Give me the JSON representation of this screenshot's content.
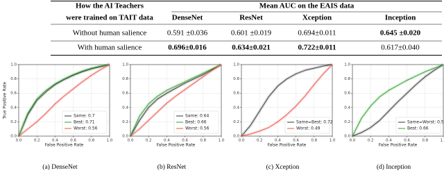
{
  "table": {
    "header": {
      "left": [
        "How the AI Teachers",
        "were trained on TAIT data"
      ],
      "group": "Mean AUC on the EAIS data",
      "columns": [
        "DenseNet",
        "ResNet",
        "Xception",
        "Inception"
      ]
    },
    "rows": [
      {
        "label": "Without human salience",
        "cells": [
          {
            "text": "0.591 ±0.036",
            "bold": false,
            "color": "#b04fe0"
          },
          {
            "text": "0.601 ±0.019",
            "bold": false,
            "color": "#b04fe0"
          },
          {
            "text": "0.694±0.011",
            "bold": false,
            "color": "#d98a00"
          },
          {
            "text": "0.645 ±0.020",
            "bold": true,
            "color": "#9b30d0"
          }
        ]
      },
      {
        "label": "With human salience",
        "cells": [
          {
            "text": "0.696±0.016",
            "bold": true,
            "color": "#9b30d0"
          },
          {
            "text": "0.634±0.021",
            "bold": true,
            "color": "#9b30d0"
          },
          {
            "text": "0.722±0.011",
            "bold": true,
            "color": "#d98a00"
          },
          {
            "text": "0.617±0.040",
            "bold": false,
            "color": "#b04fe0"
          }
        ]
      }
    ]
  },
  "chart_data": [
    {
      "type": "line",
      "caption": "(a) DenseNet",
      "xlabel": "False Positive Rate",
      "ylabel": "True Positive Rate",
      "xlim": [
        0,
        1
      ],
      "ylim": [
        0,
        1
      ],
      "grid": true,
      "legend": "lower right",
      "xticks": [
        {
          "value": 0,
          "label": "0.0"
        },
        0.2,
        0.4,
        0.6,
        0.8,
        {
          "value": 1,
          "label": "1.0"
        }
      ],
      "yticks": [
        {
          "value": 0,
          "label": "0.0"
        },
        0.2,
        0.4,
        0.6,
        0.8,
        {
          "value": 1,
          "label": "1.0"
        }
      ],
      "x": [
        0,
        0.1,
        0.2,
        0.3,
        0.4,
        0.5,
        0.6,
        0.7,
        0.8,
        0.9,
        1
      ],
      "series": [
        {
          "name": "Same: 0.7",
          "color": "#333333",
          "values": [
            0,
            0.3,
            0.5,
            0.62,
            0.72,
            0.79,
            0.85,
            0.9,
            0.94,
            0.97,
            1
          ]
        },
        {
          "name": "Best: 0.71",
          "color": "#2ca02c",
          "values": [
            0,
            0.32,
            0.52,
            0.64,
            0.73,
            0.8,
            0.86,
            0.91,
            0.95,
            0.98,
            1
          ]
        },
        {
          "name": "Worst: 0.56",
          "color": "#e8554e",
          "values": [
            0,
            0.1,
            0.2,
            0.32,
            0.45,
            0.56,
            0.66,
            0.76,
            0.85,
            0.93,
            1
          ]
        }
      ]
    },
    {
      "type": "line",
      "caption": "(b) ResNet",
      "xlabel": "False Positive Rate",
      "xlim": [
        0,
        1
      ],
      "ylim": [
        0,
        1
      ],
      "grid": true,
      "legend": "lower right",
      "xticks": [
        {
          "value": 0,
          "label": "0.0"
        },
        0.2,
        0.4,
        0.6,
        0.8,
        {
          "value": 1,
          "label": "1.0"
        }
      ],
      "yticks": [
        {
          "value": 0,
          "label": "0.0"
        },
        0.2,
        0.4,
        0.6,
        0.8,
        {
          "value": 1,
          "label": "1.0"
        }
      ],
      "x": [
        0,
        0.1,
        0.2,
        0.3,
        0.4,
        0.5,
        0.6,
        0.7,
        0.8,
        0.9,
        1
      ],
      "series": [
        {
          "name": "Same: 0.64",
          "color": "#333333",
          "values": [
            0,
            0.22,
            0.4,
            0.52,
            0.6,
            0.67,
            0.74,
            0.8,
            0.86,
            0.93,
            1
          ]
        },
        {
          "name": "Best: 0.66",
          "color": "#2ca02c",
          "values": [
            0,
            0.28,
            0.45,
            0.56,
            0.64,
            0.7,
            0.76,
            0.82,
            0.88,
            0.94,
            1
          ]
        },
        {
          "name": "Worst: 0.56",
          "color": "#e8554e",
          "values": [
            0,
            0.1,
            0.22,
            0.34,
            0.46,
            0.56,
            0.65,
            0.74,
            0.83,
            0.92,
            1
          ]
        }
      ]
    },
    {
      "type": "line",
      "caption": "(c) Xception",
      "xlabel": "False Positive Rate",
      "xlim": [
        0,
        1
      ],
      "ylim": [
        0,
        1
      ],
      "grid": true,
      "legend": "lower right",
      "xticks": [
        {
          "value": 0,
          "label": "0.0"
        },
        0.2,
        0.4,
        0.6,
        0.8,
        {
          "value": 1,
          "label": "1.0"
        }
      ],
      "yticks": [
        {
          "value": 0,
          "label": "0.0"
        },
        0.2,
        0.4,
        0.6,
        0.8,
        {
          "value": 1,
          "label": "1.0"
        }
      ],
      "x": [
        0,
        0.1,
        0.2,
        0.3,
        0.4,
        0.5,
        0.6,
        0.7,
        0.8,
        0.9,
        1
      ],
      "series": [
        {
          "name": "Same=Best: 0.72",
          "color": "#333333",
          "values": [
            0,
            0.15,
            0.35,
            0.55,
            0.7,
            0.8,
            0.87,
            0.92,
            0.95,
            0.98,
            1
          ]
        },
        {
          "name": "Worst: 0.49",
          "color": "#e8554e",
          "values": [
            0,
            0.03,
            0.07,
            0.12,
            0.2,
            0.3,
            0.42,
            0.56,
            0.72,
            0.87,
            1
          ]
        }
      ]
    },
    {
      "type": "line",
      "caption": "(d) Inception",
      "xlabel": "False Positive Rate",
      "xlim": [
        0,
        1
      ],
      "ylim": [
        0,
        1
      ],
      "grid": true,
      "legend": "lower right",
      "xticks": [
        {
          "value": 0,
          "label": "0.0"
        },
        0.2,
        0.4,
        0.6,
        0.8,
        {
          "value": 1,
          "label": "1.0"
        }
      ],
      "yticks": [
        {
          "value": 0,
          "label": "0.0"
        },
        0.2,
        0.4,
        0.6,
        0.8,
        {
          "value": 1,
          "label": "1.0"
        }
      ],
      "x": [
        0,
        0.1,
        0.2,
        0.3,
        0.4,
        0.5,
        0.6,
        0.7,
        0.8,
        0.9,
        1
      ],
      "series": [
        {
          "name": "Same=Worst: 0.52",
          "color": "#333333",
          "values": [
            0,
            0.05,
            0.12,
            0.22,
            0.35,
            0.48,
            0.6,
            0.72,
            0.83,
            0.92,
            1
          ]
        },
        {
          "name": "Best: 0.66",
          "color": "#2ca02c",
          "values": [
            0,
            0.25,
            0.42,
            0.55,
            0.64,
            0.71,
            0.78,
            0.84,
            0.9,
            0.95,
            1
          ]
        }
      ]
    }
  ]
}
